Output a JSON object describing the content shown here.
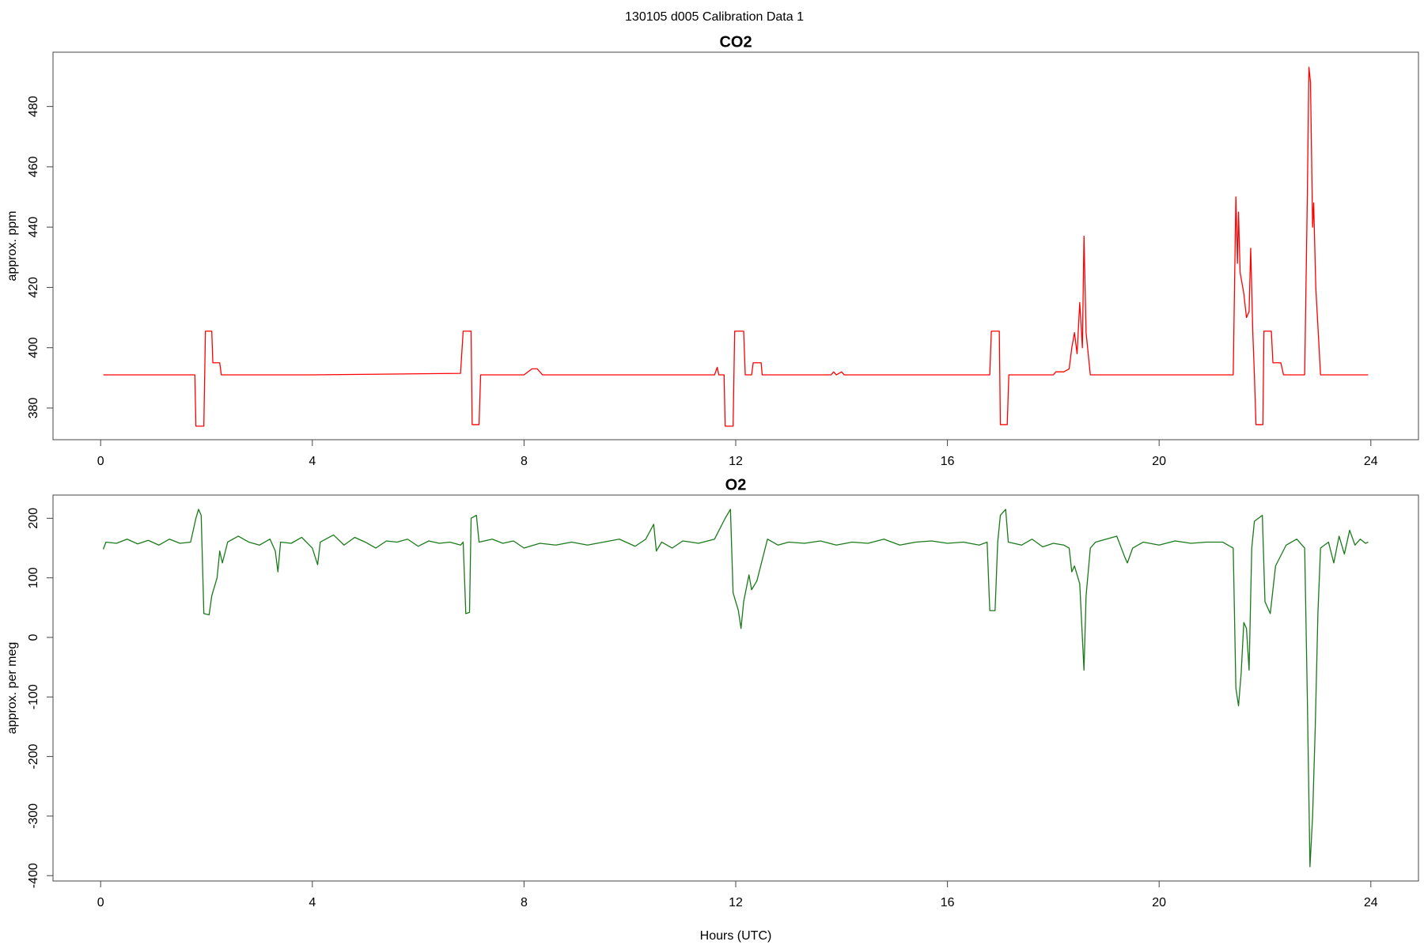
{
  "title": "130105   d005   Calibration Data 1",
  "chart_data": [
    {
      "type": "line",
      "title": "CO2",
      "y_label": "approx. ppm",
      "color": "#ff0000",
      "xlim": [
        -0.9,
        24.9
      ],
      "xticks": [
        0,
        4,
        8,
        12,
        16,
        20,
        24
      ],
      "ylim": [
        369.5,
        498
      ],
      "yticks": [
        380,
        400,
        420,
        440,
        460,
        480
      ],
      "x": [
        0.05,
        1.78,
        1.8,
        1.95,
        1.98,
        2.1,
        2.12,
        2.25,
        2.28,
        4,
        6.8,
        6.85,
        7.0,
        7.02,
        7.15,
        7.18,
        8.0,
        8.15,
        8.25,
        8.35,
        11.6,
        11.65,
        11.68,
        11.78,
        11.8,
        11.95,
        11.98,
        12.15,
        12.18,
        12.3,
        12.33,
        12.48,
        12.5,
        13.8,
        13.85,
        13.9,
        14,
        14.05,
        16.8,
        16.83,
        16.98,
        17.0,
        17.13,
        17.16,
        18.0,
        18.05,
        18.2,
        18.3,
        18.35,
        18.4,
        18.45,
        18.5,
        18.55,
        18.58,
        18.62,
        18.7,
        21.4,
        21.45,
        21.48,
        21.5,
        21.53,
        21.6,
        21.65,
        21.7,
        21.73,
        21.77,
        21.8,
        21.83,
        21.96,
        21.98,
        22.12,
        22.15,
        22.3,
        22.35,
        22.75,
        22.8,
        22.83,
        22.86,
        22.9,
        22.92,
        22.96,
        23.05,
        23.95
      ],
      "values": [
        391,
        391,
        374,
        374,
        405.5,
        405.5,
        395,
        395,
        391,
        391,
        391.5,
        405.5,
        405.5,
        374.5,
        374.5,
        391,
        391,
        393,
        393,
        391,
        391,
        393.5,
        391,
        391,
        374,
        374,
        405.5,
        405.5,
        391,
        391,
        395,
        395,
        391,
        391,
        392,
        391,
        392,
        391,
        391,
        405.5,
        405.5,
        374.5,
        374.5,
        391,
        391,
        392,
        392,
        393,
        400,
        405,
        398,
        415,
        400,
        437,
        405,
        391,
        391,
        450,
        428,
        445,
        425,
        418,
        410,
        412,
        433,
        405,
        391,
        374.5,
        374.5,
        405.5,
        405.5,
        395,
        395,
        391,
        391,
        450,
        493,
        488,
        440,
        448,
        420,
        391,
        391
      ]
    },
    {
      "type": "line",
      "title": "O2",
      "y_label": "approx. per meg",
      "x_label": "Hours (UTC)",
      "color": "#1a7a1a",
      "xlim": [
        -0.9,
        24.9
      ],
      "xticks": [
        0,
        4,
        8,
        12,
        16,
        20,
        24
      ],
      "ylim": [
        -409,
        239
      ],
      "yticks": [
        -400,
        -300,
        -200,
        -100,
        0,
        100,
        200
      ],
      "x": [
        0.05,
        0.1,
        0.3,
        0.5,
        0.7,
        0.9,
        1.1,
        1.3,
        1.5,
        1.7,
        1.8,
        1.85,
        1.9,
        1.95,
        2.05,
        2.1,
        2.2,
        2.25,
        2.3,
        2.4,
        2.6,
        2.8,
        3.0,
        3.2,
        3.3,
        3.35,
        3.4,
        3.6,
        3.8,
        4.0,
        4.1,
        4.15,
        4.4,
        4.6,
        4.8,
        5.0,
        5.2,
        5.4,
        5.6,
        5.8,
        6.0,
        6.2,
        6.4,
        6.6,
        6.8,
        6.85,
        6.9,
        6.97,
        7.0,
        7.1,
        7.15,
        7.4,
        7.6,
        7.8,
        8.0,
        8.3,
        8.6,
        8.9,
        9.2,
        9.5,
        9.8,
        10.1,
        10.3,
        10.45,
        10.5,
        10.6,
        10.8,
        11.0,
        11.3,
        11.6,
        11.8,
        11.9,
        11.95,
        12.05,
        12.1,
        12.15,
        12.25,
        12.3,
        12.4,
        12.5,
        12.6,
        12.8,
        13.0,
        13.3,
        13.6,
        13.9,
        14.2,
        14.5,
        14.8,
        15.1,
        15.4,
        15.7,
        16.0,
        16.3,
        16.6,
        16.75,
        16.8,
        16.9,
        16.95,
        17.0,
        17.1,
        17.15,
        17.4,
        17.6,
        17.8,
        18.0,
        18.2,
        18.3,
        18.35,
        18.4,
        18.5,
        18.58,
        18.62,
        18.7,
        18.8,
        19.0,
        19.2,
        19.35,
        19.4,
        19.5,
        19.7,
        20.0,
        20.3,
        20.6,
        20.9,
        21.2,
        21.4,
        21.45,
        21.5,
        21.55,
        21.6,
        21.65,
        21.7,
        21.75,
        21.8,
        21.95,
        22.0,
        22.1,
        22.2,
        22.4,
        22.6,
        22.75,
        22.8,
        22.85,
        22.9,
        22.95,
        23.0,
        23.05,
        23.2,
        23.3,
        23.4,
        23.5,
        23.6,
        23.7,
        23.8,
        23.9,
        23.95
      ],
      "values": [
        148,
        160,
        158,
        165,
        157,
        163,
        155,
        165,
        158,
        160,
        200,
        215,
        205,
        40,
        38,
        70,
        100,
        145,
        125,
        160,
        170,
        160,
        155,
        165,
        145,
        110,
        160,
        158,
        168,
        150,
        122,
        160,
        172,
        155,
        168,
        160,
        150,
        162,
        160,
        165,
        153,
        162,
        158,
        160,
        155,
        160,
        40,
        42,
        200,
        205,
        160,
        165,
        158,
        162,
        150,
        158,
        155,
        160,
        155,
        160,
        165,
        153,
        165,
        190,
        145,
        160,
        150,
        162,
        158,
        165,
        200,
        215,
        75,
        45,
        15,
        60,
        105,
        80,
        95,
        130,
        165,
        155,
        160,
        158,
        162,
        155,
        160,
        158,
        165,
        155,
        160,
        162,
        158,
        160,
        155,
        160,
        45,
        45,
        160,
        205,
        215,
        160,
        155,
        165,
        152,
        158,
        155,
        150,
        110,
        120,
        90,
        -55,
        70,
        150,
        160,
        165,
        170,
        135,
        125,
        150,
        160,
        155,
        162,
        158,
        160,
        160,
        150,
        -85,
        -115,
        -60,
        25,
        15,
        -55,
        150,
        195,
        205,
        60,
        40,
        120,
        155,
        165,
        150,
        -100,
        -385,
        -300,
        -150,
        40,
        150,
        160,
        125,
        170,
        140,
        180,
        155,
        165,
        158,
        160
      ]
    }
  ]
}
